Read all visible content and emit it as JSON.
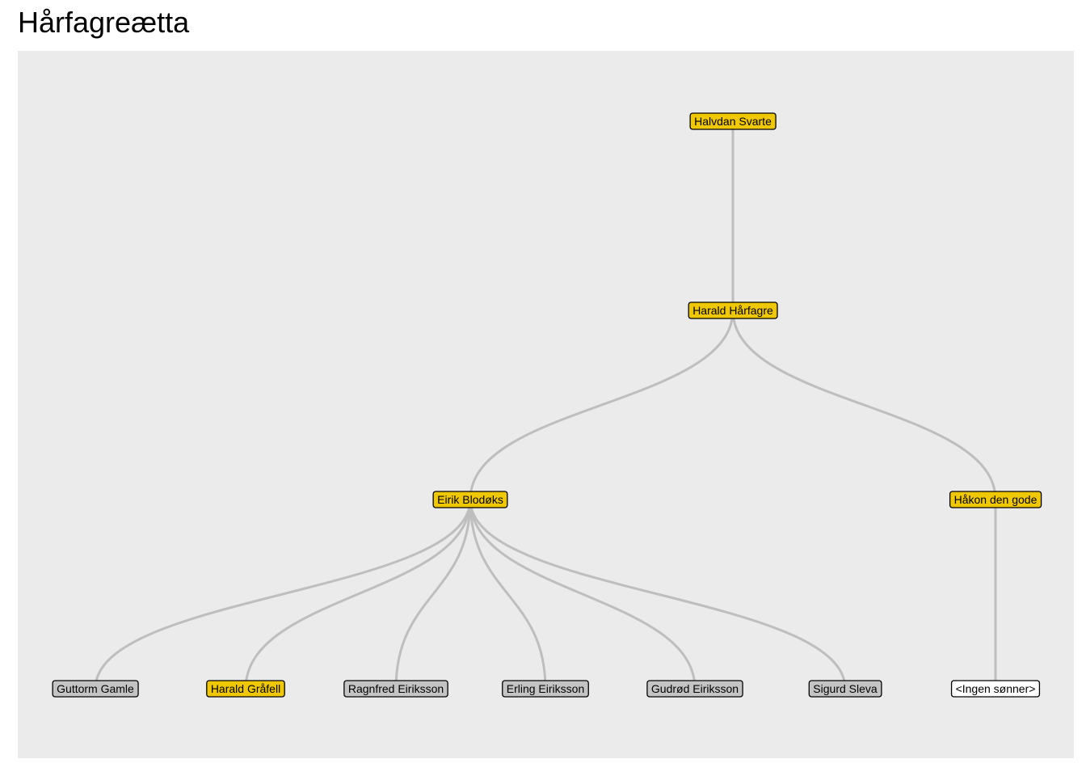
{
  "title": "Hårfagreætta",
  "colors": {
    "panel_bg": "#ebebeb",
    "edge": "#bebebe",
    "king": "#f0c800",
    "non_king": "#c4c4c4",
    "none": "#ffffff",
    "border": "#000000"
  },
  "nodes": [
    {
      "id": "halvdan",
      "label": "Halvdan Svarte",
      "type": "king"
    },
    {
      "id": "harald-h",
      "label": "Harald Hårfagre",
      "type": "king"
    },
    {
      "id": "eirik",
      "label": "Eirik Blodøks",
      "type": "king"
    },
    {
      "id": "hakon",
      "label": "Håkon den gode",
      "type": "king"
    },
    {
      "id": "guttorm",
      "label": "Guttorm Gamle",
      "type": "non_king"
    },
    {
      "id": "harald-g",
      "label": "Harald Gråfell",
      "type": "king"
    },
    {
      "id": "ragnfred",
      "label": "Ragnfred Eiriksson",
      "type": "non_king"
    },
    {
      "id": "erling",
      "label": "Erling Eiriksson",
      "type": "non_king"
    },
    {
      "id": "gudrod",
      "label": "Gudrød Eiriksson",
      "type": "non_king"
    },
    {
      "id": "sigurd",
      "label": "Sigurd Sleva",
      "type": "non_king"
    },
    {
      "id": "ingen",
      "label": "<Ingen sønner>",
      "type": "none"
    }
  ],
  "edges": [
    [
      "halvdan",
      "harald-h"
    ],
    [
      "harald-h",
      "eirik"
    ],
    [
      "harald-h",
      "hakon"
    ],
    [
      "eirik",
      "guttorm"
    ],
    [
      "eirik",
      "harald-g"
    ],
    [
      "eirik",
      "ragnfred"
    ],
    [
      "eirik",
      "erling"
    ],
    [
      "eirik",
      "gudrod"
    ],
    [
      "eirik",
      "sigurd"
    ],
    [
      "hakon",
      "ingen"
    ]
  ]
}
